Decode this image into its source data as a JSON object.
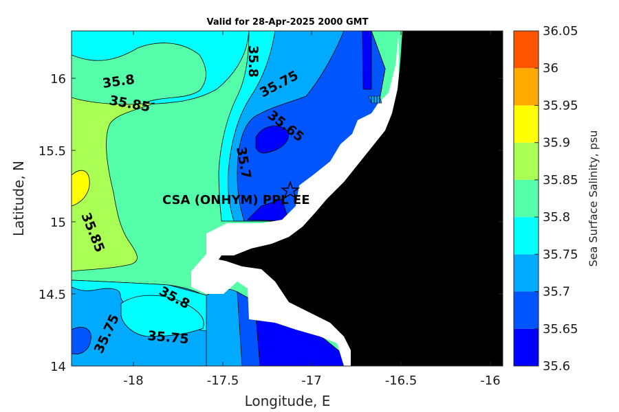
{
  "title": "Valid for 28-Apr-2025 2000 GMT",
  "xlabel": "Longitude, E",
  "ylabel": "Latitude, N",
  "x_ticks": [
    "-18",
    "-17.5",
    "-17",
    "-16.5",
    "-16"
  ],
  "y_ticks": [
    "14",
    "14.5",
    "15",
    "15.5",
    "16"
  ],
  "colorbar": {
    "title": "Sea Surface Salinity, psu",
    "labels": [
      "35.6",
      "35.65",
      "35.7",
      "35.75",
      "35.8",
      "35.85",
      "35.9",
      "35.95",
      "36",
      "36.05"
    ],
    "colors": [
      "#0000ff",
      "#0055ff",
      "#00aaff",
      "#00ffff",
      "#55ffaa",
      "#aaff55",
      "#ffff00",
      "#ffaa00",
      "#ff5500"
    ]
  },
  "contour_labels": {
    "c1": "35.8",
    "c2": "35.85",
    "c3": "35.8",
    "c4": "35.75",
    "c5": "35.65",
    "c6": "35.7",
    "c7": "35.85",
    "c8": "35.8",
    "c9": "35.75",
    "c10": "35.75"
  },
  "site_label": "CSA (ONHYM) PPL EE",
  "land_color": "#000000",
  "mask_color": "#ffffff"
}
